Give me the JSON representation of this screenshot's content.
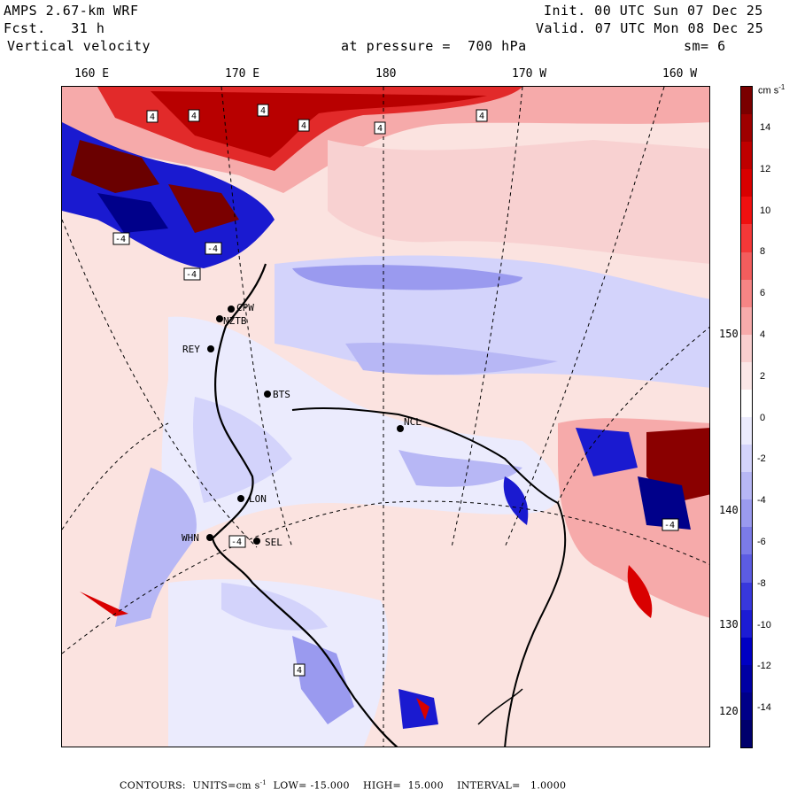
{
  "header": {
    "model": "AMPS 2.67-km WRF",
    "forecast_label": "Fcst.",
    "forecast_hours": "31 h",
    "field": "Vertical velocity",
    "pressure_text": "at pressure =  700 hPa",
    "init": "Init. 00 UTC Sun 07 Dec 25",
    "valid": "Valid. 07 UTC Mon 08 Dec 25",
    "smoothing": "sm= 6"
  },
  "longitude_labels": [
    "160 E",
    "170 E",
    "180",
    "170 W",
    "160 W"
  ],
  "latitude_labels": [
    "150 W",
    "140 W",
    "130 W",
    "120 W"
  ],
  "stations": [
    "CPW",
    "NZTB",
    "REY",
    "BTS",
    "NCL",
    "LON",
    "WHN",
    "SEL"
  ],
  "colorbar": {
    "units": "cm s",
    "units_exp": "-1",
    "ticks": [
      "14",
      "12",
      "10",
      "8",
      "6",
      "4",
      "2",
      "0",
      "-2",
      "-4",
      "-6",
      "-8",
      "-10",
      "-12",
      "-14"
    ],
    "colors": [
      "#7a0000",
      "#9e0000",
      "#bf0000",
      "#d90000",
      "#f01010",
      "#f43838",
      "#f35d5d",
      "#f68585",
      "#f7abab",
      "#f9cfcf",
      "#fbe7e7",
      "#ffffff",
      "#ebebfd",
      "#d3d3fb",
      "#b7b7f5",
      "#9a9aef",
      "#7b7be8",
      "#5c5ce2",
      "#3838dc",
      "#1c1cd4",
      "#0000c4",
      "#0000a4",
      "#000088",
      "#00006c"
    ]
  },
  "footer": {
    "contours_label": "CONTOURS:",
    "units_label": "UNITS=cm s",
    "units_exp": "-1",
    "low": "LOW= -15.000",
    "high": "HIGH=  15.000",
    "interval": "INTERVAL=   1.0000"
  },
  "contour_box_labels": [
    "4",
    "-4"
  ]
}
